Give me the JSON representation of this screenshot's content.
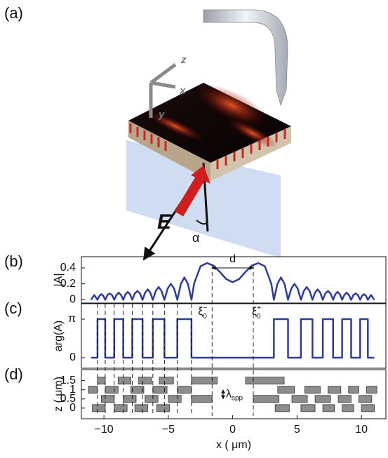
{
  "illustration": {
    "panel": "(a)",
    "axes": [
      "z",
      "x",
      "y"
    ],
    "field": "E",
    "angle": "α"
  },
  "chart_data": [
    {
      "type": "line",
      "panel": "(b)",
      "ylabel": "|A|",
      "color": "#2e3d9a",
      "xlim": [
        -11.75,
        11.9
      ],
      "ylim": [
        -0.04,
        0.54
      ],
      "yticks": [
        0,
        0.2,
        0.4
      ],
      "x": [
        -11,
        -10.75,
        -10.5,
        -10.35,
        -10.2,
        -10.05,
        -9.9,
        -9.725,
        -9.55,
        -9.375,
        -9.2,
        -9.025,
        -8.85,
        -8.675,
        -8.5,
        -8.325,
        -8.15,
        -7.975,
        -7.8,
        -7.6,
        -7.4,
        -7.2,
        -7,
        -6.8,
        -6.6,
        -6.4,
        -6.2,
        -5.975,
        -5.75,
        -5.525,
        -5.3,
        -5.05,
        -4.8,
        -4.55,
        -4.3,
        -4.025,
        -3.75,
        -3.475,
        -3.2,
        -3,
        -2.5,
        -2,
        -1.5,
        -1,
        -0.5,
        0,
        0.5,
        1,
        1.5,
        2,
        2.5,
        3,
        3.2,
        3.475,
        3.75,
        4.025,
        4.3,
        4.55,
        4.8,
        5.05,
        5.3,
        5.525,
        5.75,
        5.975,
        6.2,
        6.4,
        6.6,
        6.8,
        7,
        7.2,
        7.4,
        7.6,
        7.8,
        7.975,
        8.15,
        8.325,
        8.5,
        8.675,
        8.85,
        9.025,
        9.2,
        9.375,
        9.55,
        9.725,
        9.9,
        10.05,
        10.2,
        10.35,
        10.5,
        10.75,
        11
      ],
      "values": [
        0,
        0.06,
        0,
        0.05,
        0.07,
        0.05,
        0,
        0.06,
        0.08,
        0.06,
        0,
        0.06,
        0.09,
        0.06,
        0,
        0.07,
        0.1,
        0.07,
        0,
        0.08,
        0.11,
        0.08,
        0,
        0.09,
        0.13,
        0.09,
        0,
        0.11,
        0.16,
        0.11,
        0,
        0.14,
        0.2,
        0.14,
        0,
        0.2,
        0.28,
        0.2,
        0,
        0.2,
        0.42,
        0.46,
        0.43,
        0.35,
        0.26,
        0.22,
        0.26,
        0.35,
        0.43,
        0.46,
        0.42,
        0.2,
        0,
        0.2,
        0.28,
        0.2,
        0,
        0.14,
        0.2,
        0.14,
        0,
        0.11,
        0.16,
        0.11,
        0,
        0.09,
        0.13,
        0.09,
        0,
        0.08,
        0.11,
        0.08,
        0,
        0.07,
        0.1,
        0.07,
        0,
        0.06,
        0.09,
        0.06,
        0,
        0.06,
        0.08,
        0.06,
        0,
        0.05,
        0.07,
        0.05,
        0,
        0.06,
        0
      ],
      "annotations": [
        {
          "text": "d",
          "x": [
            -1.6,
            1.6
          ]
        }
      ]
    },
    {
      "type": "line",
      "panel": "(c)",
      "ylabel": "arg(A)",
      "color": "#2e3d9a",
      "xlim": [
        -11.75,
        11.9
      ],
      "ylim": [
        -0.86,
        4.4
      ],
      "yticks": [
        0,
        {
          "value": 3.14159,
          "label": "π"
        }
      ],
      "x": [
        -11,
        -10.5,
        -10.5,
        -9.9,
        -9.9,
        -9.2,
        -9.2,
        -8.5,
        -8.5,
        -7.8,
        -7.8,
        -7,
        -7,
        -6.2,
        -6.2,
        -5.3,
        -5.3,
        -4.3,
        -4.3,
        -3.2,
        -3.2,
        3.2,
        3.2,
        4.3,
        4.3,
        5.3,
        5.3,
        6.2,
        6.2,
        7,
        7,
        7.8,
        7.8,
        8.5,
        8.5,
        9.2,
        9.2,
        9.9,
        9.9,
        10.5,
        10.5,
        11
      ],
      "values": [
        0,
        0,
        3.14159,
        3.14159,
        0,
        0,
        3.14159,
        3.14159,
        0,
        0,
        3.14159,
        3.14159,
        0,
        0,
        3.14159,
        3.14159,
        0,
        0,
        3.14159,
        3.14159,
        0,
        0,
        3.14159,
        3.14159,
        0,
        0,
        3.14159,
        3.14159,
        0,
        0,
        3.14159,
        3.14159,
        0,
        0,
        3.14159,
        3.14159,
        0,
        0,
        3.14159,
        3.14159,
        0,
        0
      ],
      "annotations": [
        {
          "symbol": "ξ",
          "subscript": "0",
          "superscript": "−",
          "x": -1.6
        },
        {
          "symbol": "ξ",
          "subscript": "0",
          "superscript": "+",
          "x": 1.6
        }
      ]
    },
    {
      "type": "broken_barh",
      "panel": "(d)",
      "ylabel": "z ( μm)",
      "xlabel": "x ( μm)",
      "color": "#8c8c8c",
      "xlim": [
        -11.75,
        11.9
      ],
      "ylim": [
        -0.58,
        2.1
      ],
      "yticks": [
        0,
        0.5,
        1,
        1.5
      ],
      "xticks": [
        {
          "value": -10,
          "label": "−10"
        },
        {
          "value": -5,
          "label": "−5"
        },
        0,
        5,
        10
      ],
      "series": [
        {
          "z": 1.5,
          "segments": [
            [
              -10.5,
              -9.9
            ],
            [
              -8.9,
              -7.9
            ],
            [
              -7.3,
              -6.3
            ],
            [
              -5.7,
              -4.6
            ],
            [
              -3.2,
              -1.2
            ],
            [
              1,
              4
            ]
          ]
        },
        {
          "z": 1,
          "segments": [
            [
              -11.2,
              -10.5
            ],
            [
              -9.9,
              -8.9
            ],
            [
              -7.9,
              -6.9
            ],
            [
              -6.2,
              -5.1
            ],
            [
              -4.3,
              -3.2
            ],
            [
              3.5,
              4.8
            ],
            [
              5.6,
              6.8
            ],
            [
              7.4,
              8.4
            ],
            [
              9,
              9.8
            ],
            [
              10.4,
              11.2
            ]
          ]
        },
        {
          "z": 0.5,
          "segments": [
            [
              -10.2,
              -9.2
            ],
            [
              -8.5,
              -7.5
            ],
            [
              -6.8,
              -5.8
            ],
            [
              -5,
              -4
            ],
            [
              -3.2,
              -1.6
            ],
            [
              1.6,
              3.6
            ],
            [
              4.6,
              5.8
            ],
            [
              6.4,
              7.6
            ],
            [
              8.2,
              9.2
            ],
            [
              9.8,
              10.8
            ]
          ]
        },
        {
          "z": 0,
          "segments": [
            [
              -10.9,
              -9.9
            ],
            [
              -9.2,
              -8.2
            ],
            [
              -7.6,
              -6.6
            ],
            [
              -5.9,
              -4.9
            ],
            [
              3.3,
              4.4
            ],
            [
              5.3,
              6.4
            ],
            [
              7,
              7.9
            ],
            [
              8.5,
              9.4
            ],
            [
              10,
              11
            ]
          ]
        }
      ],
      "annotations": [
        {
          "symbol": "λ",
          "subscript": "spp",
          "z": [
            0.5,
            1
          ]
        }
      ]
    }
  ]
}
